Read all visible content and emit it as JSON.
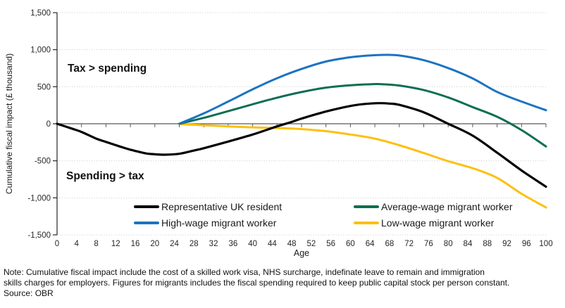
{
  "chart_data": {
    "type": "line",
    "title": "",
    "xlabel": "Age",
    "ylabel": "Cumulative fiscal impact (£ thousand)",
    "xlim": [
      0,
      100
    ],
    "ylim": [
      -1500,
      1500
    ],
    "yticks": [
      1500,
      1000,
      500,
      0,
      -500,
      -1000,
      -1500
    ],
    "x_label_step": 4,
    "x_minor_tick_step": 5,
    "grid": "dotted horizontal gridlines, solid zero line",
    "legend_position": "inside bottom, two columns",
    "annotations": [
      {
        "text": "Tax > spending",
        "region": "above zero line"
      },
      {
        "text": "Spending > tax",
        "region": "below zero line"
      }
    ],
    "series": [
      {
        "name": "Representative UK resident",
        "color": "#000000",
        "x": [
          0,
          3,
          5,
          8,
          10,
          13,
          15,
          18,
          20,
          22,
          25,
          28,
          30,
          35,
          40,
          45,
          48,
          50,
          55,
          60,
          63,
          66,
          68,
          70,
          75,
          80,
          85,
          90,
          95,
          100
        ],
        "y": [
          0,
          -65,
          -110,
          -200,
          -245,
          -310,
          -350,
          -398,
          -412,
          -418,
          -405,
          -362,
          -330,
          -240,
          -145,
          -35,
          25,
          70,
          165,
          240,
          268,
          278,
          272,
          255,
          155,
          0,
          -160,
          -390,
          -630,
          -850
        ]
      },
      {
        "name": "High-wage migrant worker",
        "color": "#1b73c1",
        "x": [
          25,
          30,
          35,
          40,
          45,
          50,
          55,
          60,
          64,
          67,
          70,
          75,
          80,
          85,
          90,
          95,
          100
        ],
        "y": [
          0,
          140,
          300,
          465,
          615,
          740,
          840,
          898,
          922,
          930,
          922,
          858,
          752,
          612,
          430,
          300,
          183
        ]
      },
      {
        "name": "Average-wage migrant worker",
        "color": "#0d6e54",
        "x": [
          25,
          30,
          35,
          40,
          45,
          50,
          55,
          60,
          64,
          66,
          70,
          75,
          80,
          85,
          90,
          95,
          100
        ],
        "y": [
          0,
          80,
          170,
          263,
          352,
          428,
          488,
          520,
          533,
          535,
          516,
          455,
          355,
          225,
          95,
          -85,
          -307
        ]
      },
      {
        "name": "Low-wage migrant worker",
        "color": "#fdc010",
        "x": [
          25,
          30,
          35,
          40,
          45,
          50,
          55,
          60,
          65,
          70,
          75,
          80,
          85,
          90,
          95,
          100
        ],
        "y": [
          -5,
          -20,
          -35,
          -48,
          -58,
          -72,
          -100,
          -145,
          -200,
          -290,
          -395,
          -505,
          -600,
          -730,
          -945,
          -1130
        ]
      }
    ],
    "draw_order": [
      3,
      2,
      1,
      0
    ],
    "legend_display_order": [
      0,
      2,
      1,
      3
    ]
  },
  "note": {
    "lines": [
      "Note: Cumulative fiscal impact include the cost of a skilled work visa, NHS surcharge, indefinate leave to remain and immigration",
      "skills charges for employers. Figures for migrants includes the fiscal spending required to keep public capital stock per person constant."
    ],
    "source": "Source: OBR"
  }
}
